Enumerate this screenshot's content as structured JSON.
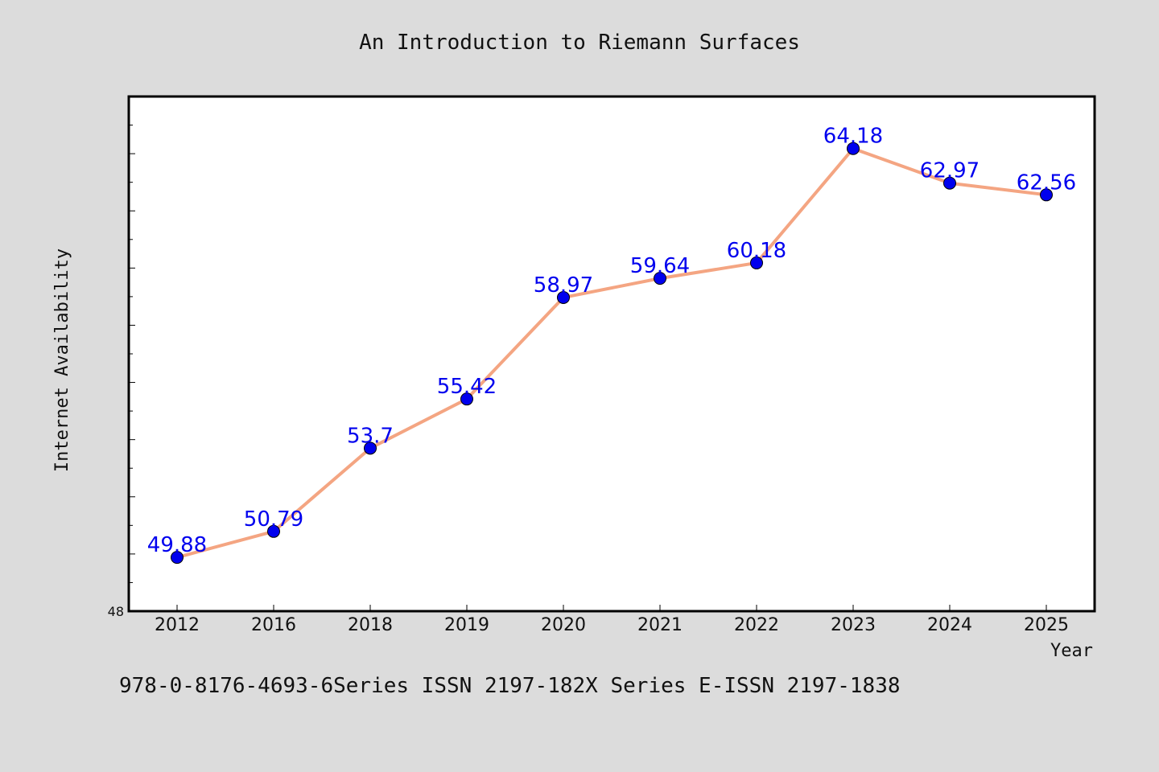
{
  "chart_data": {
    "type": "line",
    "title": "An Introduction to Riemann Surfaces",
    "xlabel": "Year",
    "ylabel": "Internet Availability",
    "categories": [
      "2012",
      "2016",
      "2018",
      "2019",
      "2020",
      "2021",
      "2022",
      "2023",
      "2024",
      "2025"
    ],
    "series": [
      {
        "values": [
          49.88,
          50.79,
          53.7,
          55.42,
          58.97,
          59.64,
          60.18,
          64.18,
          62.97,
          62.56
        ],
        "labels": [
          "49.88",
          "50.79",
          "53.7",
          "55.42",
          "58.97",
          "59.64",
          "60.18",
          "64.18",
          "62.97",
          "62.56"
        ]
      }
    ],
    "ylim": [
      48,
      66
    ],
    "yticks_labeled": [
      "48"
    ],
    "grid": false,
    "line_color": "#f4a582",
    "marker_color": "#0000ee",
    "label_color": "#0000ee"
  },
  "footer": "978-0-8176-4693-6Series ISSN 2197-182X Series E-ISSN 2197-1838"
}
